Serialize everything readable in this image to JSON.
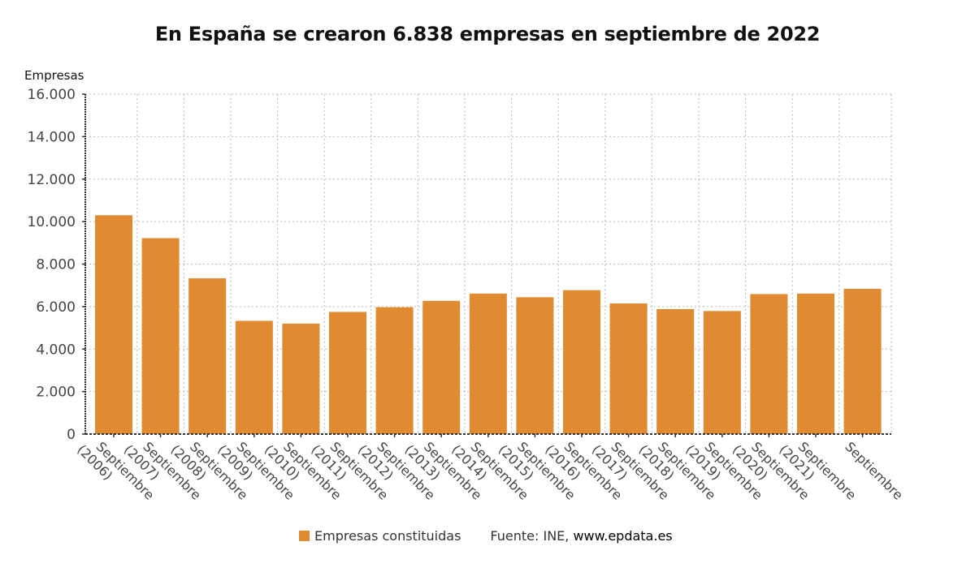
{
  "chart_data": {
    "type": "bar",
    "title": "En España se crearon 6.838 empresas en septiembre de 2022",
    "ylabel": "Empresas",
    "xlabel": "",
    "ylim": [
      0,
      16000
    ],
    "yticks": [
      0,
      2000,
      4000,
      6000,
      8000,
      10000,
      12000,
      14000,
      16000
    ],
    "ytick_labels": [
      "0",
      "2.000",
      "4.000",
      "6.000",
      "8.000",
      "10.000",
      "12.000",
      "14.000",
      "16.000"
    ],
    "grid": true,
    "categories": [
      [
        "Septiembre",
        "(2006)"
      ],
      [
        "Septiembre",
        "(2007)"
      ],
      [
        "Septiembre",
        "(2008)"
      ],
      [
        "Septiembre",
        "(2009)"
      ],
      [
        "Septiembre",
        "(2010)"
      ],
      [
        "Septiembre",
        "(2011)"
      ],
      [
        "Septiembre",
        "(2012)"
      ],
      [
        "Septiembre",
        "(2013)"
      ],
      [
        "Septiembre",
        "(2014)"
      ],
      [
        "Septiembre",
        "(2015)"
      ],
      [
        "Septiembre",
        "(2016)"
      ],
      [
        "Septiembre",
        "(2017)"
      ],
      [
        "Septiembre",
        "(2018)"
      ],
      [
        "Septiembre",
        "(2019)"
      ],
      [
        "Septiembre",
        "(2020)"
      ],
      [
        "Septiembre",
        "(2021)"
      ],
      [
        "Septiembre"
      ]
    ],
    "series": [
      {
        "name": "Empresas constituidas",
        "color": "#E08A31",
        "values": [
          10300,
          9220,
          7330,
          5330,
          5200,
          5750,
          5970,
          6270,
          6610,
          6440,
          6770,
          6150,
          5880,
          5790,
          6590,
          6610,
          6838
        ]
      }
    ],
    "legend": {
      "position": "bottom",
      "entries": [
        "Empresas constituidas"
      ]
    },
    "source": {
      "prefix": "Fuente: INE, ",
      "site": "www.epdata.es"
    }
  }
}
